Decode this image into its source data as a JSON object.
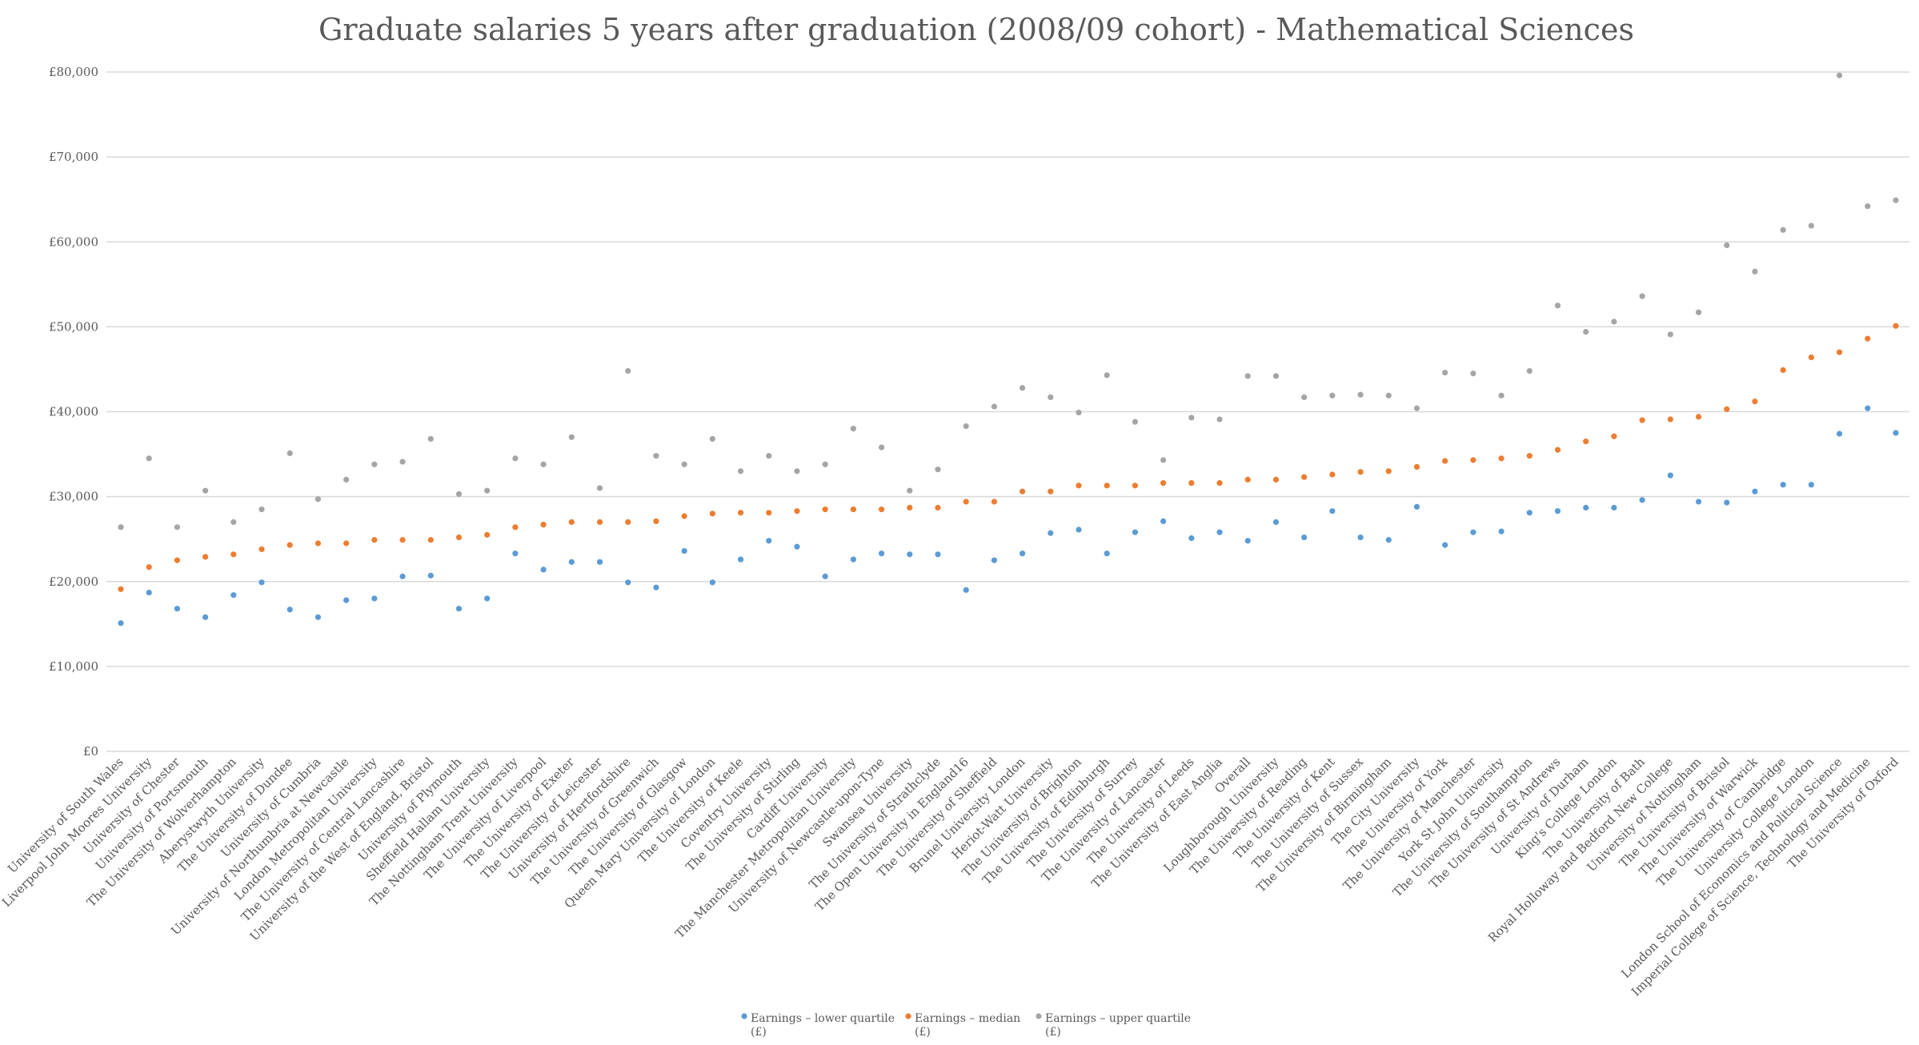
{
  "chart_data": {
    "type": "scatter",
    "title": "Graduate salaries 5 years after graduation (2008/09 cohort) - Mathematical Sciences",
    "xlabel": "",
    "ylabel": "",
    "ylim": [
      0,
      80000
    ],
    "yticks": [
      0,
      10000,
      20000,
      30000,
      40000,
      50000,
      60000,
      70000,
      80000
    ],
    "ytick_labels": [
      "£0",
      "£10,000",
      "£20,000",
      "£30,000",
      "£40,000",
      "£50,000",
      "£60,000",
      "£70,000",
      "£80,000"
    ],
    "grid": true,
    "legend_position": "bottom",
    "categories": [
      "University of South Wales",
      "Liverpool John Moores University",
      "University of Chester",
      "University of Portsmouth",
      "The University of Wolverhampton",
      "Aberystwyth University",
      "The University of Dundee",
      "University of Cumbria",
      "University of Northumbria at Newcastle",
      "London Metropolitan University",
      "The University of Central Lancashire",
      "University of the West of England, Bristol",
      "University of Plymouth",
      "Sheffield Hallam University",
      "The Nottingham Trent University",
      "The University of Liverpool",
      "The University of Exeter",
      "The University of Leicester",
      "University of Hertfordshire",
      "The University of Greenwich",
      "The University of Glasgow",
      "Queen Mary University of London",
      "The University of Keele",
      "Coventry University",
      "The University of Stirling",
      "Cardiff University",
      "The Manchester Metropolitan University",
      "University of Newcastle-upon-Tyne",
      "Swansea University",
      "The University of Strathclyde",
      "The Open University in England16",
      "The University of Sheffield",
      "Brunel University London",
      "Heriot-Watt University",
      "The University of Brighton",
      "The University of Edinburgh",
      "The University of Surrey",
      "The University of Lancaster",
      "The University of Leeds",
      "The University of East Anglia",
      "Overall",
      "Loughborough University",
      "The University of Reading",
      "The University of Kent",
      "The University of Sussex",
      "The University of Birmingham",
      "The City University",
      "The University of York",
      "The University of Manchester",
      "York St John University",
      "The University of Southampton",
      "The University of St Andrews",
      "University of Durham",
      "King's College London",
      "The University of Bath",
      "Royal Holloway and Bedford New College",
      "University of Nottingham",
      "The University of Bristol",
      "The University of Warwick",
      "The University of Cambridge",
      "University College London",
      "London School of Economics and Political Science",
      "Imperial College of Science, Technology and Medicine",
      "The University of Oxford"
    ],
    "series": [
      {
        "name": "Earnings – lower quartile",
        "unit": "(£)",
        "color": "#5b9bd5",
        "values": [
          15100,
          18700,
          16800,
          15800,
          18400,
          19900,
          16700,
          15800,
          17800,
          18000,
          20600,
          20700,
          16800,
          18000,
          23300,
          21400,
          22300,
          22300,
          19900,
          19300,
          23600,
          19900,
          22600,
          24800,
          24100,
          20600,
          22600,
          23300,
          23200,
          23200,
          19000,
          22500,
          23300,
          25700,
          26100,
          23300,
          25800,
          27100,
          25100,
          25800,
          24800,
          27000,
          25200,
          28300,
          25200,
          24900,
          28800,
          24300,
          25800,
          25900,
          28100,
          28300,
          28700,
          28700,
          29600,
          32500,
          29400,
          29300,
          30600,
          31400,
          31400,
          37400,
          40400,
          37500
        ]
      },
      {
        "name": "Earnings – median",
        "unit": "(£)",
        "color": "#ed7d31",
        "values": [
          19100,
          21700,
          22500,
          22900,
          23200,
          23800,
          24300,
          24500,
          24500,
          24900,
          24900,
          24900,
          25200,
          25500,
          26400,
          26700,
          27000,
          27000,
          27000,
          27100,
          27700,
          28000,
          28100,
          28100,
          28300,
          28500,
          28500,
          28500,
          28700,
          28700,
          29400,
          29400,
          30600,
          30600,
          31300,
          31300,
          31300,
          31600,
          31600,
          31600,
          32000,
          32000,
          32300,
          32600,
          32900,
          33000,
          33500,
          34200,
          34300,
          34500,
          34800,
          35500,
          36500,
          37100,
          39000,
          39100,
          39400,
          40300,
          41200,
          44900,
          46400,
          47000,
          48600,
          50100
        ]
      },
      {
        "name": "Earnings – upper quartile",
        "unit": "(£)",
        "color": "#a5a5a5",
        "values": [
          26400,
          34500,
          26400,
          30700,
          27000,
          28500,
          35100,
          29700,
          32000,
          33800,
          34100,
          36800,
          30300,
          30700,
          34500,
          33800,
          37000,
          31000,
          44800,
          34800,
          33800,
          36800,
          33000,
          34800,
          33000,
          33800,
          38000,
          35800,
          30700,
          33200,
          38300,
          40600,
          42800,
          41700,
          39900,
          44300,
          38800,
          34300,
          39300,
          39100,
          44200,
          44200,
          41700,
          41900,
          42000,
          41900,
          40400,
          44600,
          44500,
          41900,
          44800,
          52500,
          49400,
          50600,
          53600,
          49100,
          51700,
          59600,
          56500,
          61400,
          61900,
          79600,
          64200,
          64900
        ]
      }
    ]
  }
}
